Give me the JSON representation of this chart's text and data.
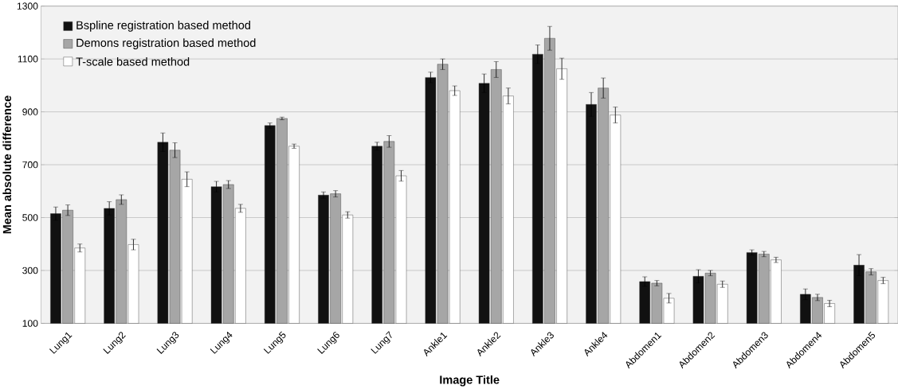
{
  "chart_data": {
    "type": "bar",
    "xlabel": "Image Title",
    "ylabel": "Mean absolute difference",
    "categories": [
      "Lung1",
      "Lung2",
      "Lung3",
      "Lung4",
      "Lung5",
      "Lung6",
      "Lung7",
      "Ankle1",
      "Ankle2",
      "Ankle3",
      "Ankle4",
      "Abdomen1",
      "Abdomen2",
      "Abdomen3",
      "Abdomen4",
      "Abdomen5"
    ],
    "series": [
      {
        "name": "Bspline registration based method",
        "color": "#111111",
        "values": [
          515,
          535,
          785,
          617,
          848,
          585,
          770,
          1030,
          1008,
          1118,
          928,
          258,
          278,
          368,
          210,
          320
        ],
        "errors": [
          25,
          25,
          35,
          20,
          10,
          12,
          15,
          20,
          35,
          35,
          45,
          18,
          25,
          10,
          20,
          40
        ]
      },
      {
        "name": "Demons registration based method",
        "color": "#a6a6a6",
        "values": [
          528,
          568,
          755,
          625,
          875,
          590,
          788,
          1080,
          1060,
          1178,
          990,
          252,
          290,
          362,
          198,
          295
        ],
        "errors": [
          20,
          18,
          28,
          15,
          5,
          12,
          22,
          20,
          30,
          45,
          38,
          10,
          10,
          10,
          12,
          12
        ]
      },
      {
        "name": "T-scale based method",
        "color": "#ffffff",
        "values": [
          385,
          398,
          645,
          535,
          770,
          510,
          658,
          980,
          960,
          1063,
          888,
          195,
          248,
          340,
          175,
          262
        ],
        "errors": [
          15,
          20,
          28,
          15,
          8,
          12,
          20,
          18,
          30,
          40,
          30,
          18,
          12,
          10,
          12,
          12
        ]
      }
    ],
    "ylim": [
      100,
      1300
    ],
    "yticks": [
      100,
      300,
      500,
      700,
      900,
      1100,
      1300
    ],
    "grid": "y",
    "legend": "top left"
  }
}
